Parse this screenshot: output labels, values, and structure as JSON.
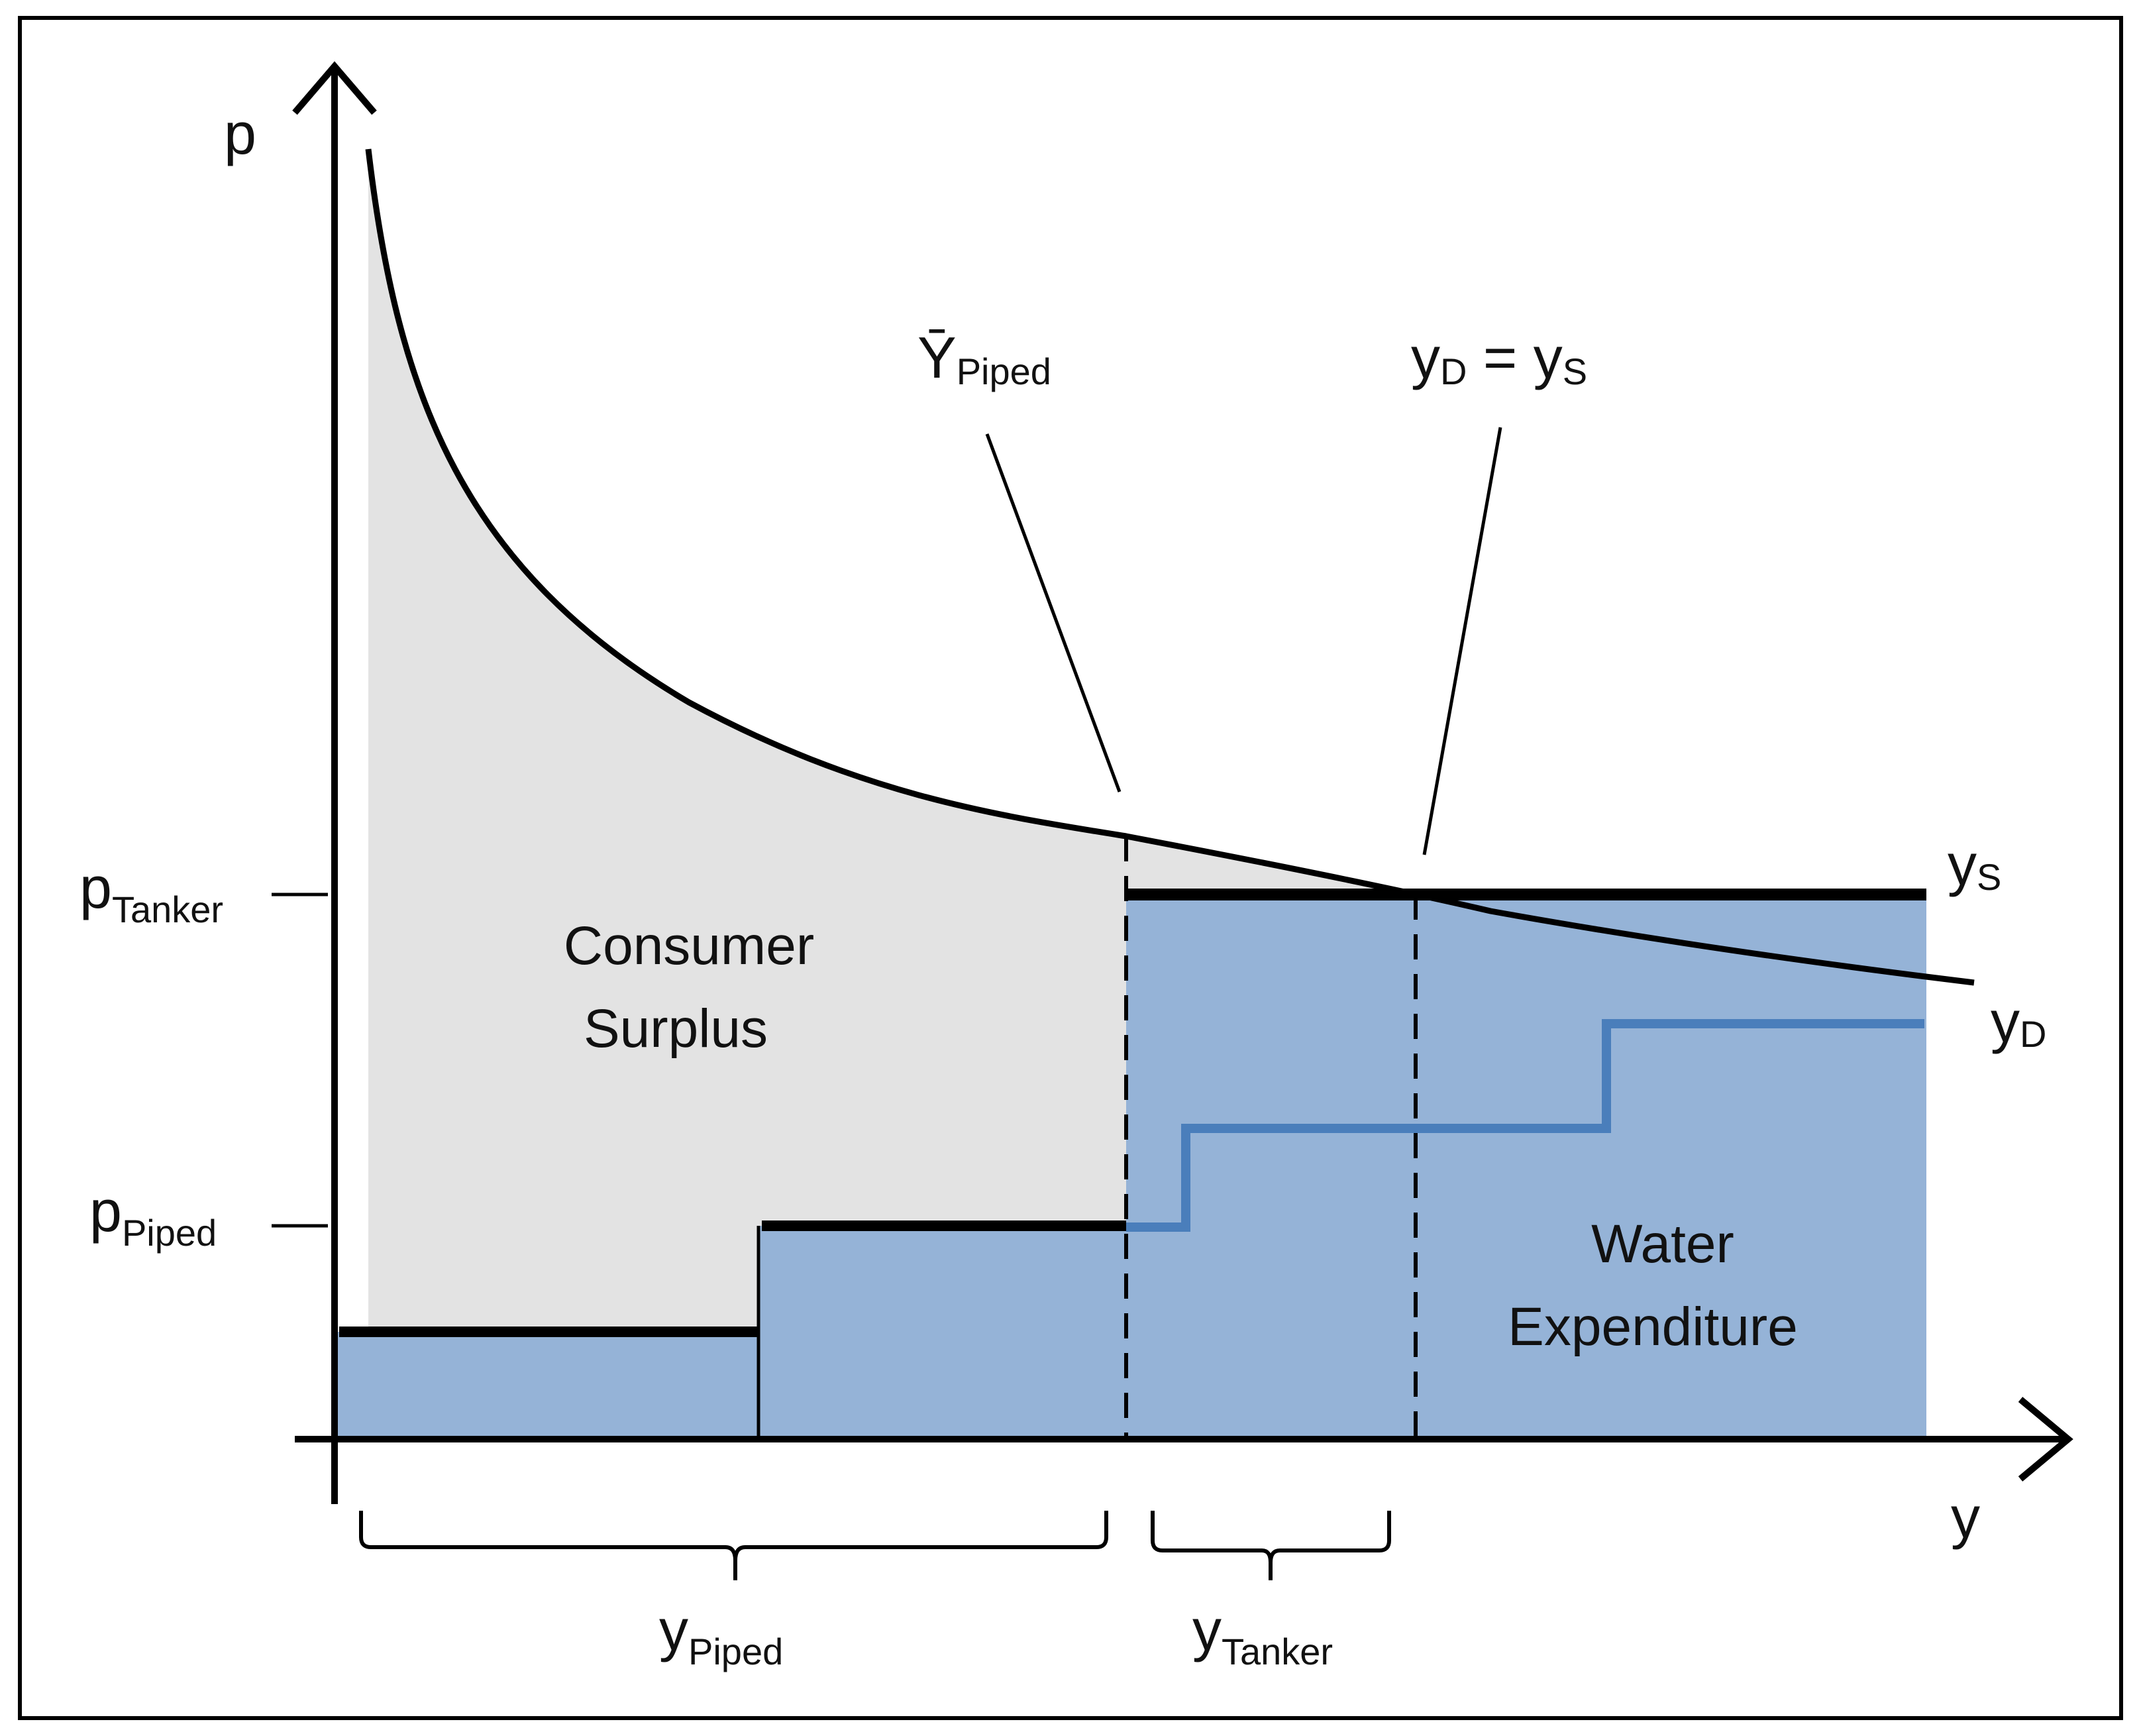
{
  "diagram": {
    "axis_y_label": "p",
    "axis_x_label": "y",
    "price_labels": {
      "tanker": {
        "base": "p",
        "sub": "Tanker"
      },
      "piped": {
        "base": "p",
        "sub": "Piped"
      }
    },
    "annotations": {
      "ybar_piped": {
        "base": "Ȳ",
        "sub": "Piped"
      },
      "equilibrium": {
        "lhs_base": "y",
        "lhs_sub": "D",
        "eq": " = ",
        "rhs_base": "y",
        "rhs_sub": "S"
      }
    },
    "curve_labels": {
      "supply": {
        "base": "y",
        "sub": "S"
      },
      "demand": {
        "base": "y",
        "sub": "D"
      }
    },
    "area_labels": {
      "consumer_surplus_line1": "Consumer",
      "consumer_surplus_line2": "Surplus",
      "water_expenditure_line1": "Water",
      "water_expenditure_line2": "Expenditure"
    },
    "brace_labels": {
      "piped": {
        "base": "y",
        "sub": "Piped"
      },
      "tanker": {
        "base": "y",
        "sub": "Tanker"
      }
    },
    "colors": {
      "surplus_fill": "#e3e3e3",
      "expenditure_fill": "#95b3d7",
      "blue_step": "#4a7ebb",
      "ink": "#000000"
    }
  }
}
